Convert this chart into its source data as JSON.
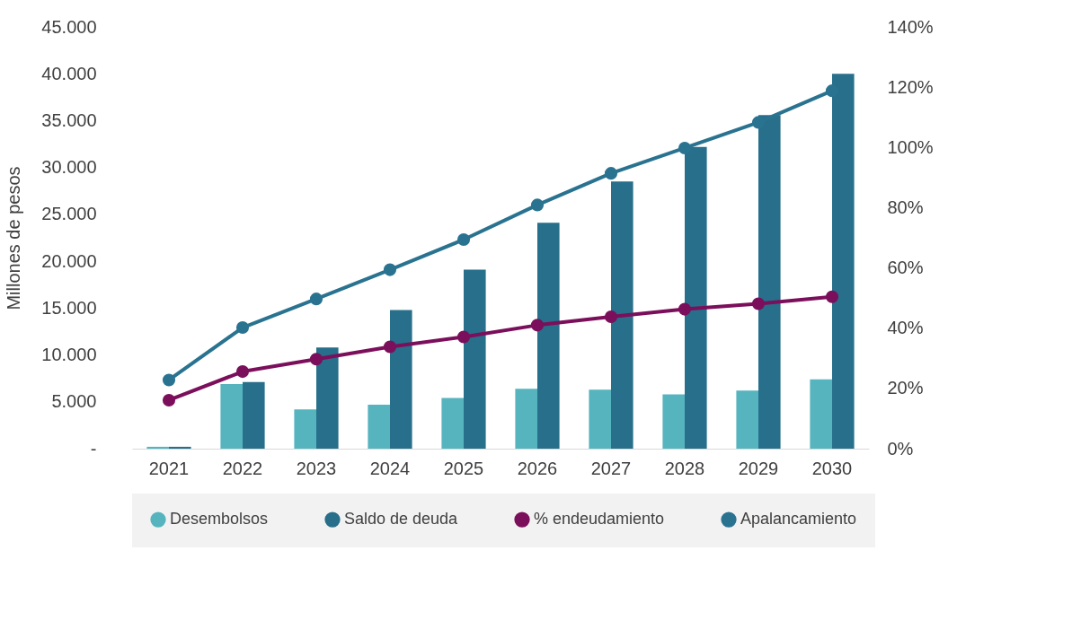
{
  "chart_data": {
    "type": "bar",
    "ylabel": "Millones de pesos",
    "categories": [
      "2021",
      "2022",
      "2023",
      "2024",
      "2025",
      "2026",
      "2027",
      "2028",
      "2029",
      "2030"
    ],
    "series": [
      {
        "name": "Desembolsos",
        "color": "#56b4be",
        "values": [
          200,
          6900,
          4200,
          4700,
          5400,
          6400,
          6300,
          5800,
          6200,
          7400
        ]
      },
      {
        "name": "Saldo de deuda",
        "color": "#276f8a",
        "values": [
          200,
          7100,
          10800,
          14800,
          19100,
          24100,
          28500,
          32200,
          35600,
          40000
        ]
      },
      {
        "name": "% endeudamiento",
        "type": "line",
        "axis": "y2",
        "marker": "circle",
        "color": "#7b0f5b",
        "values": [
          16.1,
          25.6,
          29.7,
          33.8,
          37.1,
          41.0,
          43.8,
          46.3,
          48.1,
          50.4
        ]
      },
      {
        "name": "Apalancamiento",
        "type": "line",
        "axis": "y2",
        "marker": "circle",
        "color": "#2a7390",
        "values": [
          22.8,
          40.2,
          49.7,
          59.4,
          69.4,
          80.9,
          91.4,
          99.8,
          108.3,
          118.8
        ]
      }
    ],
    "ylim": [
      0,
      45000
    ],
    "yticks": [
      {
        "value": 0,
        "label": "-"
      },
      {
        "value": 5000,
        "label": "5.000"
      },
      {
        "value": 10000,
        "label": "10.000"
      },
      {
        "value": 15000,
        "label": "15.000"
      },
      {
        "value": 20000,
        "label": "20.000"
      },
      {
        "value": 25000,
        "label": "25.000"
      },
      {
        "value": 30000,
        "label": "30.000"
      },
      {
        "value": 35000,
        "label": "35.000"
      },
      {
        "value": 40000,
        "label": "40.000"
      },
      {
        "value": 45000,
        "label": "45.000"
      }
    ],
    "y2lim": [
      0,
      140
    ],
    "y2ticks": [
      {
        "value": 0,
        "label": "0%"
      },
      {
        "value": 20,
        "label": "20%"
      },
      {
        "value": 40,
        "label": "40%"
      },
      {
        "value": 60,
        "label": "60%"
      },
      {
        "value": 80,
        "label": "80%"
      },
      {
        "value": 100,
        "label": "100%"
      },
      {
        "value": 120,
        "label": "120%"
      },
      {
        "value": 140,
        "label": "140%"
      }
    ],
    "grid": false,
    "legend": "bottom"
  }
}
